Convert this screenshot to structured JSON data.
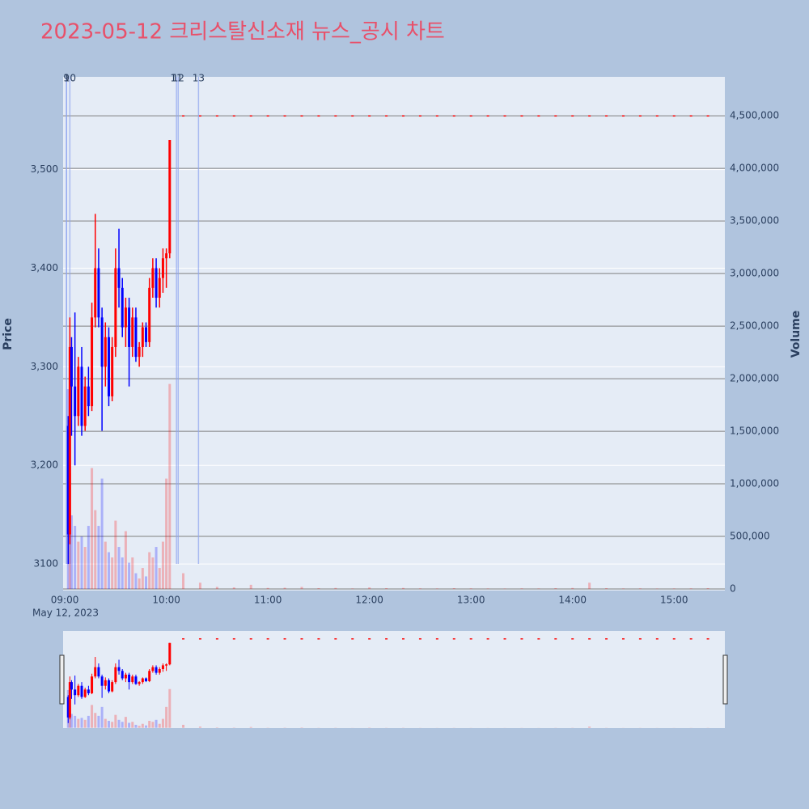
{
  "chart_data": {
    "type": "candlestick",
    "title": "2023-05-12 크리스탈신소재 뉴스_공시 차트",
    "yaxis_title": "Price",
    "y2axis_title": "Volume",
    "x_date_label": "May 12, 2023",
    "increasing_color": "#ff0000",
    "decreasing_color": "#0000ff",
    "xlim": [
      "08:59",
      "15:30"
    ],
    "xticks": [
      "09:00",
      "10:00",
      "11:00",
      "12:00",
      "13:00",
      "14:00",
      "15:00"
    ],
    "ylim": [
      3073,
      3594
    ],
    "yticks": [
      3100,
      {
        "value": 3200,
        "label": "3,200"
      },
      {
        "value": 3300,
        "label": "3,300"
      },
      {
        "value": 3400,
        "label": "3,400"
      },
      {
        "value": 3500,
        "label": "3,500"
      }
    ],
    "y2lim": [
      -15000,
      4870000
    ],
    "y2ticks": [
      0,
      {
        "value": 500000,
        "label": "500,000"
      },
      {
        "value": 1000000,
        "label": "1,000,000"
      },
      {
        "value": 1500000,
        "label": "1,500,000"
      },
      {
        "value": 2000000,
        "label": "2,000,000"
      },
      {
        "value": 2500000,
        "label": "2,500,000"
      },
      {
        "value": 3000000,
        "label": "3,000,000"
      },
      {
        "value": 3500000,
        "label": "3,500,000"
      },
      {
        "value": 4000000,
        "label": "4,000,000"
      },
      {
        "value": 4500000,
        "label": "4,500,000"
      }
    ],
    "annotations": [
      {
        "text": "1",
        "x": "09:01"
      },
      {
        "text": "9",
        "x": "09:01"
      },
      {
        "text": "10",
        "x": "09:03"
      },
      {
        "text": "11",
        "x": "10:06"
      },
      {
        "text": "12",
        "x": "10:07"
      },
      {
        "text": "13",
        "x": "10:19"
      }
    ],
    "candles": {
      "x": [
        "09:02",
        "09:03",
        "09:04",
        "09:06",
        "09:08",
        "09:10",
        "09:12",
        "09:14",
        "09:16",
        "09:18",
        "09:20",
        "09:22",
        "09:24",
        "09:26",
        "09:28",
        "09:30",
        "09:32",
        "09:34",
        "09:36",
        "09:38",
        "09:40",
        "09:42",
        "09:44",
        "09:46",
        "09:48",
        "09:50",
        "09:52",
        "09:54",
        "09:56",
        "09:58",
        "10:00",
        "10:02",
        "10:10",
        "10:20",
        "10:30",
        "10:40",
        "10:50",
        "11:00",
        "11:10",
        "11:20",
        "11:30",
        "11:40",
        "11:50",
        "12:00",
        "12:10",
        "12:20",
        "12:30",
        "12:40",
        "12:50",
        "13:00",
        "13:10",
        "13:20",
        "13:30",
        "13:40",
        "13:50",
        "14:00",
        "14:10",
        "14:20",
        "14:30",
        "14:40",
        "14:50",
        "15:00",
        "15:10",
        "15:20"
      ],
      "open": [
        3240,
        3130,
        3320,
        3280,
        3250,
        3300,
        3240,
        3280,
        3260,
        3350,
        3400,
        3350,
        3300,
        3330,
        3270,
        3320,
        3400,
        3380,
        3340,
        3360,
        3320,
        3350,
        3310,
        3320,
        3340,
        3325,
        3380,
        3400,
        3370,
        3390,
        3410,
        3415,
        3555,
        3555,
        3555,
        3555,
        3555,
        3555,
        3555,
        3555,
        3555,
        3555,
        3555,
        3555,
        3555,
        3555,
        3555,
        3555,
        3555,
        3555,
        3555,
        3555,
        3555,
        3555,
        3555,
        3555,
        3555,
        3555,
        3555,
        3555,
        3555,
        3555,
        3555,
        3555
      ],
      "high": [
        3250,
        3350,
        3330,
        3355,
        3310,
        3320,
        3290,
        3300,
        3365,
        3455,
        3420,
        3360,
        3345,
        3340,
        3330,
        3420,
        3440,
        3390,
        3370,
        3370,
        3360,
        3360,
        3325,
        3345,
        3345,
        3390,
        3410,
        3410,
        3400,
        3420,
        3420,
        3530,
        3555,
        3555,
        3555,
        3555,
        3555,
        3555,
        3555,
        3555,
        3555,
        3555,
        3555,
        3555,
        3555,
        3555,
        3555,
        3555,
        3555,
        3555,
        3555,
        3555,
        3555,
        3555,
        3555,
        3555,
        3555,
        3555,
        3555,
        3555,
        3555,
        3555,
        3555,
        3555
      ],
      "low": [
        3100,
        3120,
        3230,
        3200,
        3240,
        3230,
        3235,
        3250,
        3255,
        3340,
        3340,
        3235,
        3280,
        3260,
        3265,
        3310,
        3360,
        3330,
        3320,
        3280,
        3310,
        3305,
        3300,
        3310,
        3320,
        3320,
        3370,
        3360,
        3360,
        3375,
        3380,
        3410,
        3555,
        3555,
        3555,
        3555,
        3555,
        3555,
        3555,
        3555,
        3555,
        3555,
        3555,
        3555,
        3555,
        3555,
        3555,
        3555,
        3555,
        3555,
        3555,
        3555,
        3555,
        3555,
        3555,
        3555,
        3555,
        3555,
        3555,
        3555,
        3555,
        3555,
        3555,
        3555
      ],
      "close": [
        3130,
        3320,
        3280,
        3250,
        3300,
        3240,
        3280,
        3260,
        3350,
        3400,
        3350,
        3300,
        3330,
        3270,
        3320,
        3400,
        3380,
        3340,
        3360,
        3320,
        3350,
        3310,
        3320,
        3340,
        3325,
        3380,
        3400,
        3370,
        3390,
        3410,
        3415,
        3530,
        3555,
        3555,
        3555,
        3555,
        3555,
        3555,
        3555,
        3555,
        3555,
        3555,
        3555,
        3555,
        3555,
        3555,
        3555,
        3555,
        3555,
        3555,
        3555,
        3555,
        3555,
        3555,
        3555,
        3555,
        3555,
        3555,
        3555,
        3555,
        3555,
        3555,
        3555,
        3555
      ],
      "volume": [
        1900000,
        1100000,
        700000,
        600000,
        450000,
        500000,
        400000,
        600000,
        1150000,
        750000,
        600000,
        1050000,
        450000,
        350000,
        300000,
        650000,
        400000,
        300000,
        550000,
        250000,
        300000,
        150000,
        100000,
        200000,
        120000,
        350000,
        300000,
        400000,
        200000,
        450000,
        1050000,
        1950000,
        150000,
        60000,
        20000,
        15000,
        40000,
        10000,
        12000,
        20000,
        8000,
        10000,
        5000,
        15000,
        8000,
        10000,
        6000,
        5000,
        8000,
        6000,
        5000,
        4000,
        6000,
        5000,
        8000,
        10000,
        60000,
        8000,
        5000,
        6000,
        4000,
        5000,
        6000,
        8000
      ]
    }
  }
}
